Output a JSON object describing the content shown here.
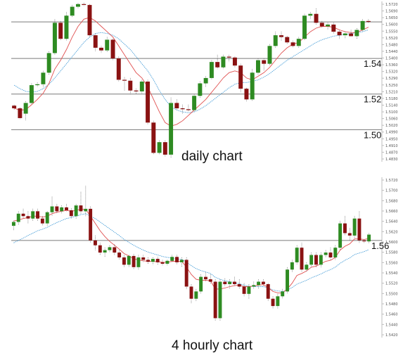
{
  "chart_data": [
    {
      "type": "candlestick",
      "caption": "daily chart",
      "colors": {
        "up": "#2e8b22",
        "down": "#8a1212",
        "ma_fast": "#e05050",
        "ma_slow": "#4a9fd8",
        "level": "#7a7a7a"
      },
      "ylim": [
        1.482,
        1.572
      ],
      "levels": [
        {
          "value": 1.5605,
          "label": ""
        },
        {
          "value": 1.54,
          "label": "1.54"
        },
        {
          "value": 1.52,
          "label": "1.52"
        },
        {
          "value": 1.5,
          "label": "1.50"
        }
      ],
      "ticks": [
        "1.5720",
        "1.5690",
        "1.5650",
        "1.5600",
        "1.5550",
        "1.5520",
        "1.5480",
        "1.5440",
        "1.5400",
        "1.5360",
        "1.5320",
        "1.5290",
        "1.5250",
        "1.5210",
        "1.5180",
        "1.5140",
        "1.5100",
        "1.5060",
        "1.5020",
        "1.4990",
        "1.4950",
        "1.4910",
        "1.4870",
        "1.4830"
      ],
      "ohlc": [
        [
          1.5135,
          1.514,
          1.511,
          1.512
        ],
        [
          1.512,
          1.5125,
          1.506,
          1.5065
        ],
        [
          1.509,
          1.516,
          1.505,
          1.515
        ],
        [
          1.515,
          1.526,
          1.514,
          1.525
        ],
        [
          1.525,
          1.5265,
          1.524,
          1.5255
        ],
        [
          1.5255,
          1.533,
          1.524,
          1.532
        ],
        [
          1.532,
          1.544,
          1.531,
          1.543
        ],
        [
          1.543,
          1.562,
          1.542,
          1.56
        ],
        [
          1.56,
          1.561,
          1.55,
          1.551
        ],
        [
          1.551,
          1.566,
          1.55,
          1.564
        ],
        [
          1.564,
          1.57,
          1.563,
          1.569
        ],
        [
          1.569,
          1.571,
          1.568,
          1.5705
        ],
        [
          1.5705,
          1.5712,
          1.5695,
          1.57
        ],
        [
          1.57,
          1.5705,
          1.552,
          1.553
        ],
        [
          1.553,
          1.554,
          1.544,
          1.546
        ],
        [
          1.546,
          1.547,
          1.543,
          1.5445
        ],
        [
          1.5445,
          1.552,
          1.5435,
          1.5505
        ],
        [
          1.5505,
          1.551,
          1.539,
          1.54
        ],
        [
          1.54,
          1.541,
          1.527,
          1.528
        ],
        [
          1.528,
          1.5295,
          1.522,
          1.5275
        ],
        [
          1.5275,
          1.529,
          1.52,
          1.522
        ],
        [
          1.522,
          1.523,
          1.52,
          1.5215
        ],
        [
          1.5215,
          1.528,
          1.5205,
          1.527
        ],
        [
          1.527,
          1.528,
          1.503,
          1.504
        ],
        [
          1.504,
          1.505,
          1.486,
          1.487
        ],
        [
          1.487,
          1.494,
          1.486,
          1.493
        ],
        [
          1.493,
          1.494,
          1.485,
          1.486
        ],
        [
          1.486,
          1.518,
          1.484,
          1.515
        ],
        [
          1.515,
          1.517,
          1.511,
          1.512
        ],
        [
          1.512,
          1.514,
          1.509,
          1.5115
        ],
        [
          1.5115,
          1.514,
          1.51,
          1.511
        ],
        [
          1.511,
          1.52,
          1.51,
          1.519
        ],
        [
          1.519,
          1.527,
          1.518,
          1.526
        ],
        [
          1.526,
          1.53,
          1.524,
          1.529
        ],
        [
          1.529,
          1.539,
          1.528,
          1.538
        ],
        [
          1.538,
          1.542,
          1.534,
          1.535
        ],
        [
          1.535,
          1.542,
          1.534,
          1.541
        ],
        [
          1.541,
          1.542,
          1.538,
          1.5405
        ],
        [
          1.5405,
          1.541,
          1.535,
          1.536
        ],
        [
          1.536,
          1.537,
          1.521,
          1.523
        ],
        [
          1.523,
          1.5235,
          1.516,
          1.517
        ],
        [
          1.517,
          1.534,
          1.516,
          1.532
        ],
        [
          1.532,
          1.54,
          1.531,
          1.539
        ],
        [
          1.539,
          1.54,
          1.533,
          1.537
        ],
        [
          1.537,
          1.548,
          1.536,
          1.547
        ],
        [
          1.547,
          1.555,
          1.546,
          1.553
        ],
        [
          1.553,
          1.555,
          1.55,
          1.552
        ],
        [
          1.552,
          1.5525,
          1.548,
          1.549
        ],
        [
          1.549,
          1.55,
          1.546,
          1.547
        ],
        [
          1.547,
          1.552,
          1.546,
          1.551
        ],
        [
          1.551,
          1.565,
          1.55,
          1.564
        ],
        [
          1.564,
          1.566,
          1.562,
          1.565
        ],
        [
          1.565,
          1.568,
          1.559,
          1.56
        ],
        [
          1.56,
          1.561,
          1.557,
          1.558
        ],
        [
          1.558,
          1.56,
          1.556,
          1.559
        ],
        [
          1.559,
          1.56,
          1.554,
          1.555
        ],
        [
          1.555,
          1.556,
          1.551,
          1.553
        ],
        [
          1.553,
          1.555,
          1.551,
          1.554
        ],
        [
          1.554,
          1.556,
          1.552,
          1.5525
        ],
        [
          1.5525,
          1.557,
          1.551,
          1.556
        ],
        [
          1.556,
          1.562,
          1.555,
          1.561
        ],
        [
          1.561,
          1.562,
          1.56,
          1.5605
        ]
      ],
      "ma_fast": [
        1.512,
        1.511,
        1.5112,
        1.514,
        1.517,
        1.5205,
        1.526,
        1.534,
        1.539,
        1.545,
        1.552,
        1.558,
        1.562,
        1.563,
        1.561,
        1.558,
        1.555,
        1.552,
        1.547,
        1.542,
        1.537,
        1.532,
        1.529,
        1.524,
        1.517,
        1.51,
        1.504,
        1.502,
        1.503,
        1.505,
        1.508,
        1.511,
        1.514,
        1.517,
        1.521,
        1.525,
        1.529,
        1.532,
        1.533,
        1.532,
        1.529,
        1.528,
        1.53,
        1.532,
        1.535,
        1.539,
        1.543,
        1.546,
        1.548,
        1.549,
        1.552,
        1.555,
        1.557,
        1.558,
        1.558,
        1.5575,
        1.556,
        1.555,
        1.5545,
        1.5545,
        1.556,
        1.5575
      ],
      "ma_slow": [
        1.525,
        1.523,
        1.5215,
        1.521,
        1.5215,
        1.523,
        1.5255,
        1.529,
        1.533,
        1.537,
        1.541,
        1.545,
        1.549,
        1.552,
        1.554,
        1.5545,
        1.554,
        1.553,
        1.551,
        1.548,
        1.545,
        1.541,
        1.537,
        1.533,
        1.528,
        1.522,
        1.517,
        1.513,
        1.511,
        1.51,
        1.5095,
        1.51,
        1.5115,
        1.5135,
        1.516,
        1.5185,
        1.521,
        1.5235,
        1.5255,
        1.5265,
        1.5265,
        1.527,
        1.528,
        1.5295,
        1.5315,
        1.534,
        1.5365,
        1.539,
        1.541,
        1.543,
        1.545,
        1.547,
        1.549,
        1.5505,
        1.5515,
        1.5525,
        1.553,
        1.5535,
        1.554,
        1.5545,
        1.555,
        1.556
      ]
    },
    {
      "type": "candlestick",
      "caption": "4 hourly chart",
      "colors": {
        "up": "#2e8b22",
        "down": "#8a1212",
        "ma_fast": "#e05050",
        "ma_slow": "#4a9fd8",
        "level": "#7a7a7a"
      },
      "ylim": [
        1.54,
        1.573
      ],
      "levels": [
        {
          "value": 1.56,
          "label": "1.56"
        }
      ],
      "ticks": [
        "1.5720",
        "1.5700",
        "1.5680",
        "1.5660",
        "1.5640",
        "1.5620",
        "1.5600",
        "1.5580",
        "1.5560",
        "1.5540",
        "1.5520",
        "1.5500",
        "1.5480",
        "1.5460",
        "1.5440",
        "1.5420"
      ],
      "ohlc": [
        [
          1.563,
          1.564,
          1.562,
          1.5638
        ],
        [
          1.5638,
          1.566,
          1.5632,
          1.5655
        ],
        [
          1.5655,
          1.5665,
          1.5645,
          1.565
        ],
        [
          1.565,
          1.566,
          1.5635,
          1.5645
        ],
        [
          1.5645,
          1.5665,
          1.564,
          1.566
        ],
        [
          1.566,
          1.5665,
          1.564,
          1.5645
        ],
        [
          1.5645,
          1.565,
          1.563,
          1.5635
        ],
        [
          1.5635,
          1.566,
          1.563,
          1.5658
        ],
        [
          1.5658,
          1.569,
          1.565,
          1.567
        ],
        [
          1.567,
          1.5675,
          1.5655,
          1.566
        ],
        [
          1.566,
          1.5672,
          1.5655,
          1.5668
        ],
        [
          1.5668,
          1.5675,
          1.566,
          1.5662
        ],
        [
          1.5662,
          1.5666,
          1.5645,
          1.565
        ],
        [
          1.565,
          1.5675,
          1.5645,
          1.5672
        ],
        [
          1.5672,
          1.57,
          1.5655,
          1.566
        ],
        [
          1.566,
          1.5712,
          1.565,
          1.5665
        ],
        [
          1.5665,
          1.567,
          1.5595,
          1.56
        ],
        [
          1.56,
          1.561,
          1.558,
          1.559
        ],
        [
          1.559,
          1.5595,
          1.557,
          1.5575
        ],
        [
          1.5575,
          1.5585,
          1.5565,
          1.558
        ],
        [
          1.558,
          1.559,
          1.5575,
          1.5586
        ],
        [
          1.5586,
          1.5592,
          1.557,
          1.5575
        ],
        [
          1.5575,
          1.558,
          1.556,
          1.5565
        ],
        [
          1.5565,
          1.557,
          1.5545,
          1.555
        ],
        [
          1.555,
          1.557,
          1.5545,
          1.5568
        ],
        [
          1.5568,
          1.5572,
          1.554,
          1.5545
        ],
        [
          1.5545,
          1.557,
          1.554,
          1.5565
        ],
        [
          1.5565,
          1.557,
          1.5555,
          1.556
        ],
        [
          1.556,
          1.5565,
          1.5552,
          1.5556
        ],
        [
          1.5556,
          1.5565,
          1.555,
          1.5562
        ],
        [
          1.5562,
          1.5566,
          1.555,
          1.5555
        ],
        [
          1.5555,
          1.556,
          1.5548,
          1.5552
        ],
        [
          1.5552,
          1.556,
          1.5548,
          1.5558
        ],
        [
          1.5558,
          1.557,
          1.5555,
          1.5566
        ],
        [
          1.5566,
          1.557,
          1.555,
          1.5555
        ],
        [
          1.5555,
          1.5565,
          1.5545,
          1.556
        ],
        [
          1.556,
          1.5565,
          1.55,
          1.5505
        ],
        [
          1.5505,
          1.551,
          1.547,
          1.548
        ],
        [
          1.548,
          1.55,
          1.5475,
          1.5495
        ],
        [
          1.5495,
          1.553,
          1.549,
          1.5525
        ],
        [
          1.5525,
          1.5535,
          1.5515,
          1.552
        ],
        [
          1.552,
          1.553,
          1.551,
          1.5515
        ],
        [
          1.5515,
          1.552,
          1.5435,
          1.544
        ],
        [
          1.544,
          1.552,
          1.5435,
          1.5515
        ],
        [
          1.5515,
          1.5522,
          1.5505,
          1.551
        ],
        [
          1.551,
          1.552,
          1.55,
          1.5515
        ],
        [
          1.5515,
          1.5525,
          1.5505,
          1.551
        ],
        [
          1.551,
          1.552,
          1.55,
          1.5505
        ],
        [
          1.5505,
          1.5512,
          1.5485,
          1.549
        ],
        [
          1.549,
          1.551,
          1.548,
          1.5505
        ],
        [
          1.5505,
          1.5515,
          1.55,
          1.5508
        ],
        [
          1.5508,
          1.552,
          1.55,
          1.5515
        ],
        [
          1.5515,
          1.552,
          1.5505,
          1.551
        ],
        [
          1.551,
          1.5512,
          1.5475,
          1.548
        ],
        [
          1.548,
          1.5485,
          1.546,
          1.5465
        ],
        [
          1.5465,
          1.549,
          1.546,
          1.5485
        ],
        [
          1.5485,
          1.55,
          1.548,
          1.5495
        ],
        [
          1.5495,
          1.5545,
          1.549,
          1.554
        ],
        [
          1.554,
          1.556,
          1.5535,
          1.5555
        ],
        [
          1.5555,
          1.559,
          1.555,
          1.5585
        ],
        [
          1.5585,
          1.5595,
          1.5535,
          1.554
        ],
        [
          1.554,
          1.5555,
          1.5535,
          1.555
        ],
        [
          1.555,
          1.5575,
          1.5545,
          1.557
        ],
        [
          1.557,
          1.5575,
          1.5545,
          1.555
        ],
        [
          1.555,
          1.5575,
          1.5545,
          1.557
        ],
        [
          1.557,
          1.558,
          1.5565,
          1.5575
        ],
        [
          1.5575,
          1.5585,
          1.556,
          1.5565
        ],
        [
          1.5565,
          1.559,
          1.556,
          1.5585
        ],
        [
          1.5585,
          1.564,
          1.558,
          1.5635
        ],
        [
          1.5635,
          1.565,
          1.561,
          1.5615
        ],
        [
          1.5615,
          1.5625,
          1.56,
          1.561
        ],
        [
          1.561,
          1.565,
          1.5605,
          1.5645
        ],
        [
          1.5645,
          1.566,
          1.5595,
          1.56
        ],
        [
          1.56,
          1.5602,
          1.5595,
          1.5598
        ],
        [
          1.5598,
          1.5615,
          1.5594,
          1.5612
        ]
      ],
      "ma_fast": [
        1.564,
        1.5642,
        1.5645,
        1.5647,
        1.565,
        1.565,
        1.5648,
        1.565,
        1.5655,
        1.5658,
        1.566,
        1.5662,
        1.566,
        1.5662,
        1.5664,
        1.5664,
        1.565,
        1.5635,
        1.562,
        1.5608,
        1.5598,
        1.559,
        1.5582,
        1.5573,
        1.5568,
        1.5562,
        1.556,
        1.5558,
        1.5557,
        1.5557,
        1.5556,
        1.5555,
        1.5555,
        1.5557,
        1.5557,
        1.5557,
        1.5545,
        1.553,
        1.552,
        1.5518,
        1.5518,
        1.5517,
        1.55,
        1.55,
        1.5502,
        1.5505,
        1.5507,
        1.5508,
        1.5505,
        1.5505,
        1.5506,
        1.5508,
        1.5509,
        1.5503,
        1.5495,
        1.5492,
        1.5492,
        1.55,
        1.5512,
        1.5528,
        1.5532,
        1.5537,
        1.5545,
        1.5547,
        1.5552,
        1.5557,
        1.5559,
        1.5565,
        1.558,
        1.5588,
        1.5593,
        1.5603,
        1.5603,
        1.5602,
        1.5604
      ],
      "ma_slow": [
        1.5595,
        1.56,
        1.5605,
        1.561,
        1.5615,
        1.562,
        1.5623,
        1.5627,
        1.5632,
        1.5637,
        1.5641,
        1.5645,
        1.5647,
        1.565,
        1.5653,
        1.5655,
        1.565,
        1.5645,
        1.5638,
        1.5631,
        1.5624,
        1.5617,
        1.561,
        1.5602,
        1.5596,
        1.559,
        1.5585,
        1.558,
        1.5576,
        1.5573,
        1.557,
        1.5567,
        1.5565,
        1.5564,
        1.5562,
        1.5561,
        1.5555,
        1.5548,
        1.5542,
        1.5538,
        1.5535,
        1.5532,
        1.5524,
        1.552,
        1.5517,
        1.5515,
        1.5513,
        1.5511,
        1.5508,
        1.5506,
        1.5505,
        1.5505,
        1.5505,
        1.5502,
        1.5498,
        1.5496,
        1.5495,
        1.5498,
        1.5503,
        1.551,
        1.5514,
        1.5518,
        1.5523,
        1.5527,
        1.5531,
        1.5536,
        1.554,
        1.5545,
        1.5553,
        1.5559,
        1.5564,
        1.5571,
        1.5574,
        1.5577,
        1.5581
      ]
    }
  ]
}
